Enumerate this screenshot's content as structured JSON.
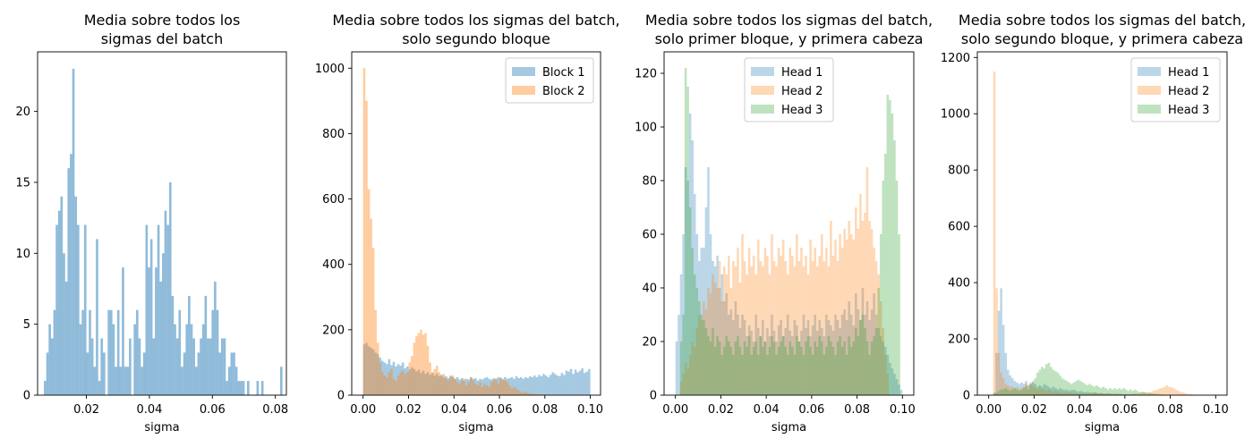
{
  "chart_data": [
    {
      "type": "histogram",
      "title_lines": [
        "Media sobre todos los",
        "sigmas del batch"
      ],
      "xlabel": "sigma",
      "ylabel": "",
      "xlim": [
        0.0045,
        0.0835
      ],
      "ylim": [
        0,
        24.2
      ],
      "xticks": [
        0.02,
        0.04,
        0.06,
        0.08
      ],
      "xtick_labels": [
        "0.02",
        "0.04",
        "0.06",
        "0.08"
      ],
      "yticks": [
        0,
        5,
        10,
        15,
        20
      ],
      "ytick_labels": [
        "0",
        "5",
        "10",
        "15",
        "20"
      ],
      "legend": null,
      "series": [
        {
          "color": "#1f77b4",
          "opacity": 0.5,
          "bin_start": 0.0065,
          "bin_width": 0.00075,
          "counts": [
            1,
            3,
            5,
            4,
            6,
            12,
            13,
            14,
            10,
            8,
            16,
            17,
            23,
            14,
            12,
            5,
            6,
            12,
            3,
            6,
            4,
            2,
            11,
            1,
            4,
            3,
            0,
            6,
            6,
            5,
            2,
            6,
            2,
            9,
            2,
            2,
            4,
            0,
            5,
            6,
            4,
            2,
            3,
            12,
            9,
            11,
            4,
            9,
            12,
            8,
            10,
            13,
            12,
            15,
            7,
            5,
            4,
            6,
            2,
            3,
            5,
            7,
            5,
            4,
            2,
            3,
            4,
            5,
            7,
            4,
            4,
            6,
            8,
            6,
            3,
            4,
            4,
            1,
            2,
            3,
            3,
            2,
            1,
            1,
            1,
            0,
            1,
            0,
            0,
            0,
            1,
            0,
            1,
            0,
            0,
            0,
            0,
            0,
            0,
            0,
            2
          ]
        }
      ]
    },
    {
      "type": "histogram",
      "title_lines": [
        "Media sobre todos los sigmas del batch,",
        "solo segundo bloque"
      ],
      "xlabel": "sigma",
      "ylabel": "",
      "xlim": [
        -0.005,
        0.1045
      ],
      "ylim": [
        0,
        1050
      ],
      "xticks": [
        0.0,
        0.02,
        0.04,
        0.06,
        0.08,
        0.1
      ],
      "xtick_labels": [
        "0.00",
        "0.02",
        "0.04",
        "0.06",
        "0.08",
        "0.10"
      ],
      "yticks": [
        0,
        200,
        400,
        600,
        800,
        1000
      ],
      "ytick_labels": [
        "0",
        "200",
        "400",
        "600",
        "800",
        "1000"
      ],
      "legend": {
        "position": "upper-right",
        "entries": [
          "Block 1",
          "Block 2"
        ]
      },
      "series": [
        {
          "name": "Block 1",
          "color": "#1f77b4",
          "opacity": 0.4,
          "bin_start": 0.0,
          "bin_width": 0.001,
          "counts": [
            155,
            160,
            150,
            145,
            140,
            130,
            125,
            115,
            105,
            100,
            95,
            110,
            92,
            102,
            88,
            95,
            90,
            100,
            82,
            88,
            78,
            85,
            80,
            72,
            78,
            68,
            75,
            65,
            70,
            62,
            68,
            60,
            65,
            58,
            62,
            55,
            58,
            52,
            60,
            55,
            50,
            55,
            48,
            52,
            45,
            50,
            48,
            55,
            50,
            52,
            45,
            50,
            48,
            52,
            55,
            50,
            48,
            52,
            50,
            55,
            52,
            48,
            55,
            50,
            52,
            55,
            50,
            58,
            52,
            55,
            50,
            55,
            52,
            58,
            55,
            60,
            55,
            62,
            58,
            65,
            60,
            55,
            62,
            70,
            65,
            60,
            58,
            68,
            62,
            75,
            72,
            80,
            65,
            78,
            70,
            75,
            82,
            68,
            72,
            80
          ]
        },
        {
          "name": "Block 2",
          "color": "#ff7f0e",
          "opacity": 0.4,
          "bin_start": 0.0,
          "bin_width": 0.001,
          "counts": [
            1000,
            900,
            630,
            540,
            450,
            260,
            160,
            100,
            70,
            60,
            55,
            70,
            80,
            50,
            45,
            60,
            70,
            75,
            65,
            70,
            100,
            120,
            160,
            180,
            190,
            200,
            185,
            190,
            150,
            100,
            70,
            80,
            90,
            70,
            60,
            65,
            50,
            45,
            55,
            60,
            50,
            40,
            35,
            45,
            50,
            30,
            40,
            55,
            45,
            35,
            30,
            40,
            25,
            35,
            30,
            25,
            40,
            45,
            50,
            35,
            55,
            50,
            45,
            40,
            30,
            20,
            25,
            20,
            15,
            10,
            8,
            12,
            6,
            5,
            4,
            3,
            3,
            2,
            2,
            2,
            1,
            1,
            1,
            1,
            1,
            0,
            0,
            0,
            0,
            0,
            0,
            0,
            0,
            0,
            0,
            0,
            0,
            0,
            0,
            0
          ]
        }
      ]
    },
    {
      "type": "histogram",
      "title_lines": [
        "Media sobre todos los sigmas del batch,",
        "solo primer bloque, y primera cabeza"
      ],
      "xlabel": "sigma",
      "ylabel": "",
      "xlim": [
        -0.005,
        0.105
      ],
      "ylim": [
        0,
        128
      ],
      "xticks": [
        0.0,
        0.02,
        0.04,
        0.06,
        0.08,
        0.1
      ],
      "xtick_labels": [
        "0.00",
        "0.02",
        "0.04",
        "0.06",
        "0.08",
        "0.10"
      ],
      "yticks": [
        0,
        20,
        40,
        60,
        80,
        100,
        120
      ],
      "ytick_labels": [
        "0",
        "20",
        "40",
        "60",
        "80",
        "100",
        "120"
      ],
      "legend": {
        "position": "upper-center",
        "entries": [
          "Head 1",
          "Head 2",
          "Head 3"
        ]
      },
      "series": [
        {
          "name": "Head 1",
          "color": "#1f77b4",
          "opacity": 0.3,
          "bin_start": 0.0,
          "bin_width": 0.001,
          "counts": [
            20,
            30,
            45,
            60,
            85,
            80,
            105,
            95,
            75,
            60,
            50,
            55,
            55,
            70,
            85,
            60,
            50,
            48,
            52,
            40,
            45,
            35,
            38,
            30,
            32,
            28,
            35,
            30,
            25,
            30,
            28,
            22,
            26,
            24,
            20,
            30,
            25,
            22,
            28,
            20,
            25,
            22,
            30,
            24,
            20,
            26,
            28,
            22,
            25,
            30,
            24,
            22,
            28,
            26,
            20,
            24,
            30,
            25,
            28,
            22,
            26,
            30,
            24,
            28,
            25,
            22,
            30,
            28,
            26,
            24,
            30,
            28,
            25,
            30,
            32,
            28,
            35,
            30,
            26,
            38,
            32,
            28,
            40,
            30,
            35,
            28,
            32,
            38,
            30,
            25,
            22,
            20,
            18,
            15,
            12,
            10,
            8,
            6,
            4,
            2
          ]
        },
        {
          "name": "Head 2",
          "color": "#ff7f0e",
          "opacity": 0.3,
          "bin_start": 0.0,
          "bin_width": 0.001,
          "counts": [
            0,
            0,
            5,
            8,
            12,
            10,
            15,
            20,
            18,
            25,
            30,
            28,
            35,
            32,
            40,
            38,
            45,
            42,
            40,
            50,
            35,
            48,
            45,
            52,
            40,
            50,
            48,
            55,
            42,
            60,
            50,
            45,
            55,
            48,
            52,
            45,
            58,
            50,
            48,
            55,
            52,
            45,
            60,
            50,
            48,
            55,
            52,
            58,
            50,
            45,
            55,
            52,
            48,
            60,
            50,
            55,
            48,
            52,
            45,
            58,
            50,
            55,
            48,
            52,
            60,
            50,
            55,
            48,
            65,
            52,
            58,
            50,
            60,
            55,
            62,
            58,
            65,
            60,
            58,
            70,
            62,
            75,
            65,
            68,
            85,
            65,
            62,
            55,
            50,
            45,
            35,
            25,
            15,
            8,
            0,
            0,
            0,
            0,
            0,
            0
          ]
        },
        {
          "name": "Head 3",
          "color": "#2ca02c",
          "opacity": 0.3,
          "bin_start": 0.0,
          "bin_width": 0.001,
          "counts": [
            0,
            0,
            20,
            30,
            122,
            115,
            70,
            55,
            45,
            40,
            35,
            30,
            28,
            25,
            22,
            20,
            25,
            18,
            22,
            20,
            15,
            18,
            22,
            20,
            18,
            15,
            20,
            22,
            18,
            15,
            20,
            18,
            22,
            15,
            18,
            20,
            15,
            22,
            18,
            20,
            15,
            18,
            22,
            20,
            15,
            18,
            20,
            22,
            18,
            15,
            20,
            18,
            15,
            22,
            20,
            18,
            15,
            20,
            22,
            18,
            15,
            20,
            18,
            22,
            20,
            15,
            18,
            22,
            20,
            18,
            15,
            20,
            22,
            18,
            20,
            15,
            22,
            18,
            20,
            25,
            22,
            28,
            30,
            25,
            20,
            15,
            20,
            22,
            25,
            40,
            60,
            80,
            90,
            112,
            110,
            105,
            95,
            80,
            60,
            0
          ]
        }
      ]
    },
    {
      "type": "histogram",
      "title_lines": [
        "Media sobre todos los sigmas del batch,",
        "solo segundo bloque, y primera cabeza"
      ],
      "xlabel": "sigma",
      "ylabel": "",
      "xlim": [
        -0.005,
        0.105
      ],
      "ylim": [
        0,
        1220
      ],
      "xticks": [
        0.0,
        0.02,
        0.04,
        0.06,
        0.08,
        0.1
      ],
      "xtick_labels": [
        "0.00",
        "0.02",
        "0.04",
        "0.06",
        "0.08",
        "0.10"
      ],
      "yticks": [
        0,
        200,
        400,
        600,
        800,
        1000,
        1200
      ],
      "ytick_labels": [
        "0",
        "200",
        "400",
        "600",
        "800",
        "1000",
        "1200"
      ],
      "legend": {
        "position": "upper-right",
        "entries": [
          "Head 1",
          "Head 2",
          "Head 3"
        ]
      },
      "series": [
        {
          "name": "Head 1",
          "color": "#1f77b4",
          "opacity": 0.3,
          "bin_start": 0.0,
          "bin_width": 0.001,
          "counts": [
            0,
            0,
            10,
            150,
            300,
            380,
            250,
            150,
            90,
            70,
            60,
            50,
            45,
            40,
            45,
            40,
            50,
            35,
            40,
            45,
            40,
            30,
            35,
            30,
            40,
            35,
            30,
            25,
            30,
            25,
            20,
            25,
            20,
            18,
            20,
            15,
            18,
            20,
            15,
            12,
            15,
            12,
            10,
            12,
            10,
            8,
            10,
            8,
            6,
            8,
            6,
            5,
            6,
            5,
            4,
            5,
            4,
            3,
            4,
            3,
            3,
            2,
            3,
            2,
            2,
            2,
            1,
            1,
            1,
            1,
            1,
            1,
            1,
            1,
            1,
            1,
            1,
            1,
            1,
            1,
            1,
            1,
            1,
            1,
            1,
            1,
            0,
            0,
            0,
            0,
            0,
            0,
            0,
            0,
            0,
            0,
            0,
            0,
            0,
            0
          ]
        },
        {
          "name": "Head 2",
          "color": "#ff7f0e",
          "opacity": 0.3,
          "bin_start": 0.0,
          "bin_width": 0.001,
          "counts": [
            0,
            0,
            1150,
            380,
            150,
            80,
            60,
            40,
            35,
            30,
            30,
            25,
            28,
            22,
            25,
            30,
            40,
            35,
            45,
            30,
            25,
            20,
            30,
            22,
            18,
            15,
            20,
            15,
            12,
            15,
            12,
            10,
            8,
            10,
            8,
            10,
            8,
            6,
            8,
            6,
            5,
            6,
            8,
            5,
            6,
            8,
            10,
            8,
            6,
            5,
            6,
            5,
            8,
            6,
            5,
            4,
            6,
            5,
            4,
            3,
            4,
            3,
            4,
            5,
            6,
            5,
            8,
            10,
            12,
            10,
            8,
            10,
            15,
            18,
            20,
            25,
            25,
            30,
            35,
            30,
            28,
            25,
            20,
            15,
            12,
            10,
            8,
            5,
            4,
            3,
            2,
            1,
            1,
            0,
            0,
            0,
            0,
            0,
            0,
            0
          ]
        },
        {
          "name": "Head 3",
          "color": "#2ca02c",
          "opacity": 0.3,
          "bin_start": 0.0,
          "bin_width": 0.001,
          "counts": [
            0,
            0,
            5,
            10,
            15,
            20,
            20,
            25,
            20,
            15,
            20,
            25,
            20,
            15,
            20,
            25,
            30,
            20,
            40,
            50,
            60,
            80,
            90,
            100,
            95,
            110,
            115,
            100,
            90,
            85,
            80,
            70,
            60,
            55,
            50,
            45,
            40,
            45,
            50,
            55,
            50,
            45,
            40,
            35,
            40,
            35,
            30,
            35,
            30,
            25,
            30,
            25,
            20,
            25,
            20,
            25,
            20,
            25,
            20,
            25,
            20,
            15,
            20,
            15,
            20,
            15,
            10,
            12,
            10,
            8,
            10,
            8,
            6,
            5,
            4,
            3,
            2,
            1,
            1,
            1,
            0,
            0,
            0,
            0,
            0,
            0,
            0,
            0,
            0,
            0,
            0,
            0,
            0,
            0,
            0,
            0,
            0,
            0,
            0,
            0
          ]
        }
      ]
    }
  ]
}
